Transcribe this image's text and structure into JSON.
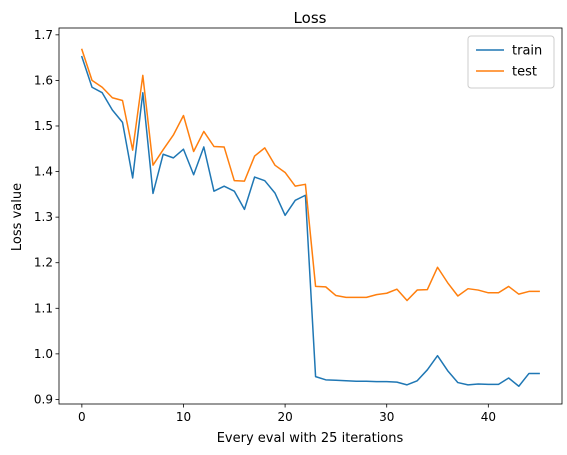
{
  "chart_data": {
    "type": "line",
    "title": "Loss",
    "xlabel": "Every eval with 25 iterations",
    "ylabel": "Loss value",
    "xlim": [
      -2.25,
      47.25
    ],
    "ylim": [
      0.89,
      1.715
    ],
    "xticks": [
      0,
      10,
      20,
      30,
      40
    ],
    "yticks": [
      0.9,
      1.0,
      1.1,
      1.2,
      1.3,
      1.4,
      1.5,
      1.6,
      1.7
    ],
    "ytick_labels": [
      "0.9",
      "1.0",
      "1.1",
      "1.2",
      "1.3",
      "1.4",
      "1.5",
      "1.6",
      "1.7"
    ],
    "grid": false,
    "legend_position": "top-right",
    "x": [
      0,
      1,
      2,
      3,
      4,
      5,
      6,
      7,
      8,
      9,
      10,
      11,
      12,
      13,
      14,
      15,
      16,
      17,
      18,
      19,
      20,
      21,
      22,
      23,
      24,
      25,
      26,
      27,
      28,
      29,
      30,
      31,
      32,
      33,
      34,
      35,
      36,
      37,
      38,
      39,
      40,
      41,
      42,
      43,
      44,
      45
    ],
    "series": [
      {
        "name": "train",
        "color": "#1f77b4",
        "values": [
          1.652,
          1.585,
          1.573,
          1.535,
          1.508,
          1.386,
          1.573,
          1.352,
          1.438,
          1.43,
          1.449,
          1.393,
          1.454,
          1.357,
          1.368,
          1.357,
          1.317,
          1.388,
          1.38,
          1.353,
          1.304,
          1.337,
          1.348,
          0.95,
          0.943,
          0.942,
          0.941,
          0.94,
          0.94,
          0.939,
          0.939,
          0.938,
          0.932,
          0.941,
          0.965,
          0.996,
          0.963,
          0.937,
          0.932,
          0.934,
          0.933,
          0.933,
          0.947,
          0.929,
          0.957,
          0.957
        ]
      },
      {
        "name": "test",
        "color": "#ff7f0e",
        "values": [
          1.668,
          1.6,
          1.585,
          1.562,
          1.556,
          1.447,
          1.611,
          1.414,
          1.448,
          1.48,
          1.523,
          1.444,
          1.488,
          1.455,
          1.454,
          1.38,
          1.379,
          1.434,
          1.452,
          1.414,
          1.398,
          1.368,
          1.372,
          1.148,
          1.147,
          1.128,
          1.124,
          1.124,
          1.124,
          1.13,
          1.133,
          1.142,
          1.117,
          1.14,
          1.141,
          1.19,
          1.156,
          1.127,
          1.143,
          1.14,
          1.134,
          1.134,
          1.148,
          1.131,
          1.137,
          1.137
        ]
      }
    ]
  }
}
